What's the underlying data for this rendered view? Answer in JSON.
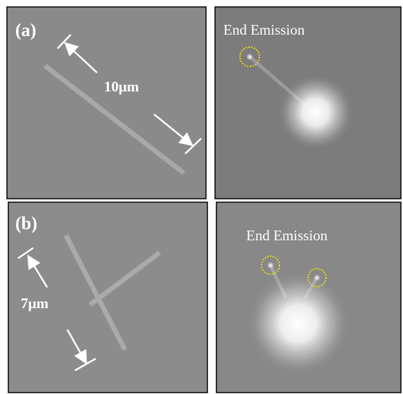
{
  "panels": [
    {
      "label": "(a)",
      "scale_label": "10μm",
      "emission_label": "End Emission"
    },
    {
      "label": "(b)",
      "scale_label": "7μm",
      "emission_label": "End Emission"
    }
  ]
}
